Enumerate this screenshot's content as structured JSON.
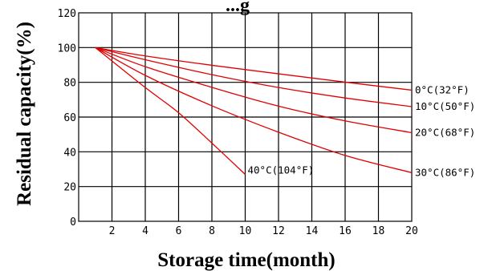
{
  "chart_data": {
    "type": "line",
    "title": "...g",
    "xlabel": "Storage time(month)",
    "ylabel": "Residual capacity(%)",
    "xlim": [
      0,
      20
    ],
    "ylim": [
      0,
      120
    ],
    "xticks": [
      2,
      4,
      6,
      8,
      10,
      12,
      14,
      16,
      18,
      20
    ],
    "yticks": [
      0,
      20,
      40,
      60,
      80,
      100,
      120
    ],
    "grid": true,
    "line_color": "#e10000",
    "series": [
      {
        "name": "0°C(32°F)",
        "points": [
          [
            1,
            100
          ],
          [
            4,
            95.2
          ],
          [
            8,
            89.8
          ],
          [
            12,
            84.9
          ],
          [
            16,
            80.1
          ],
          [
            20,
            75.5
          ]
        ]
      },
      {
        "name": "10°C(50°F)",
        "points": [
          [
            1,
            100
          ],
          [
            4,
            93.0
          ],
          [
            8,
            84.4
          ],
          [
            12,
            77.0
          ],
          [
            16,
            71.0
          ],
          [
            20,
            66.0
          ]
        ]
      },
      {
        "name": "20°C(68°F)",
        "points": [
          [
            1,
            100
          ],
          [
            4,
            89.0
          ],
          [
            8,
            77.1
          ],
          [
            12,
            66.3
          ],
          [
            16,
            57.8
          ],
          [
            20,
            51.0
          ]
        ]
      },
      {
        "name": "30°C(86°F)",
        "points": [
          [
            1,
            100
          ],
          [
            4,
            84.0
          ],
          [
            8,
            66.5
          ],
          [
            12,
            51.3
          ],
          [
            16,
            37.9
          ],
          [
            20,
            28.0
          ]
        ]
      },
      {
        "name": "40°C(104°F)",
        "points": [
          [
            1,
            100
          ],
          [
            4,
            77.0
          ],
          [
            6,
            62.5
          ],
          [
            8,
            45.0
          ],
          [
            10,
            27.0
          ]
        ]
      }
    ]
  }
}
